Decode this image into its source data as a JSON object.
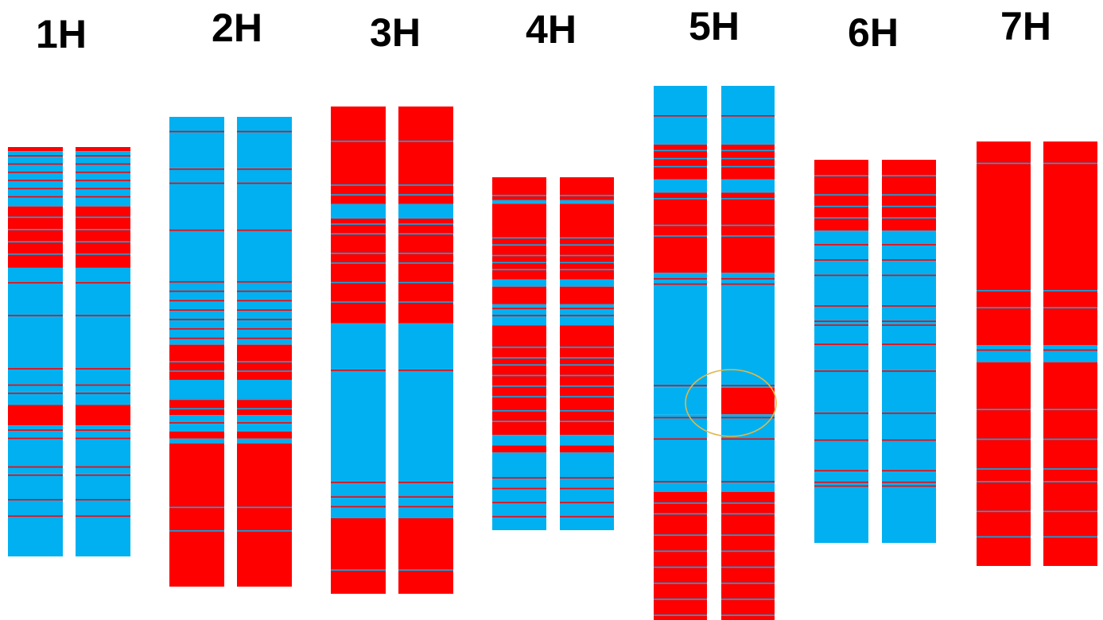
{
  "colors": {
    "blue": "#00B0F0",
    "red": "#FF0000",
    "highlight": "#E0B84A"
  },
  "chromosomes": [
    {
      "label": "1H",
      "blocks": [
        {
          "c": "red",
          "s": 0,
          "e": 0.01
        },
        {
          "c": "blue",
          "s": 0.01,
          "e": 0.145
        },
        {
          "c": "red",
          "s": 0.145,
          "e": 0.295
        },
        {
          "c": "blue",
          "s": 0.295,
          "e": 0.63
        },
        {
          "c": "red",
          "s": 0.63,
          "e": 0.68
        },
        {
          "c": "blue",
          "s": 0.68,
          "e": 1
        }
      ],
      "lines": [
        0.02,
        0.04,
        0.06,
        0.08,
        0.1,
        0.12,
        0.17,
        0.2,
        0.23,
        0.26,
        0.33,
        0.41,
        0.54,
        0.58,
        0.6,
        0.69,
        0.71,
        0.78,
        0.8,
        0.86,
        0.9
      ]
    },
    {
      "label": "2H",
      "blocks": [
        {
          "c": "blue",
          "s": 0,
          "e": 0.485
        },
        {
          "c": "red",
          "s": 0.485,
          "e": 0.56
        },
        {
          "c": "blue",
          "s": 0.56,
          "e": 0.6
        },
        {
          "c": "red",
          "s": 0.6,
          "e": 0.635
        },
        {
          "c": "blue",
          "s": 0.635,
          "e": 0.67
        },
        {
          "c": "red",
          "s": 0.67,
          "e": 0.685
        },
        {
          "c": "blue",
          "s": 0.685,
          "e": 0.695
        },
        {
          "c": "red",
          "s": 0.695,
          "e": 1
        }
      ],
      "lines": [
        0.03,
        0.11,
        0.14,
        0.24,
        0.35,
        0.37,
        0.39,
        0.41,
        0.43,
        0.45,
        0.47,
        0.52,
        0.54,
        0.6,
        0.62,
        0.65,
        0.83,
        0.88
      ]
    },
    {
      "label": "3H",
      "blocks": [
        {
          "c": "red",
          "s": 0,
          "e": 0.2
        },
        {
          "c": "blue",
          "s": 0.2,
          "e": 0.23
        },
        {
          "c": "red",
          "s": 0.23,
          "e": 0.445
        },
        {
          "c": "blue",
          "s": 0.445,
          "e": 0.845
        },
        {
          "c": "red",
          "s": 0.845,
          "e": 1
        }
      ],
      "lines": [
        0.07,
        0.16,
        0.18,
        0.24,
        0.26,
        0.3,
        0.32,
        0.36,
        0.4,
        0.54,
        0.77,
        0.8,
        0.82,
        0.95
      ]
    },
    {
      "label": "4H",
      "blocks": [
        {
          "c": "red",
          "s": 0,
          "e": 0.065
        },
        {
          "c": "blue",
          "s": 0.065,
          "e": 0.075
        },
        {
          "c": "red",
          "s": 0.075,
          "e": 0.29
        },
        {
          "c": "blue",
          "s": 0.29,
          "e": 0.31
        },
        {
          "c": "red",
          "s": 0.31,
          "e": 0.36
        },
        {
          "c": "blue",
          "s": 0.36,
          "e": 0.42
        },
        {
          "c": "red",
          "s": 0.42,
          "e": 0.73
        },
        {
          "c": "blue",
          "s": 0.73,
          "e": 0.76
        },
        {
          "c": "red",
          "s": 0.76,
          "e": 0.78
        },
        {
          "c": "blue",
          "s": 0.78,
          "e": 1
        }
      ],
      "lines": [
        0.05,
        0.17,
        0.19,
        0.22,
        0.24,
        0.26,
        0.37,
        0.39,
        0.48,
        0.51,
        0.53,
        0.56,
        0.59,
        0.62,
        0.66,
        0.69,
        0.85,
        0.88,
        0.92,
        0.96
      ]
    },
    {
      "label": "5H",
      "blocks": [
        {
          "c": "blue",
          "s": 0,
          "e": 0.11
        },
        {
          "c": "red",
          "s": 0.11,
          "e": 0.175
        },
        {
          "c": "blue",
          "s": 0.175,
          "e": 0.2
        },
        {
          "c": "red",
          "s": 0.2,
          "e": 0.35
        },
        {
          "c": "blue",
          "s": 0.35,
          "e": 0.565
        },
        {
          "c": "blue",
          "s": 0.565,
          "e": 0.615,
          "only": 0
        },
        {
          "c": "red",
          "s": 0.565,
          "e": 0.615,
          "only": 1
        },
        {
          "c": "blue",
          "s": 0.615,
          "e": 0.76
        },
        {
          "c": "red",
          "s": 0.76,
          "e": 1
        }
      ],
      "lines": [
        0.055,
        0.12,
        0.135,
        0.15,
        0.21,
        0.26,
        0.28,
        0.36,
        0.37,
        0.56,
        0.62,
        0.66,
        0.74,
        0.78,
        0.8,
        0.84,
        0.87,
        0.9,
        0.93,
        0.96,
        0.99
      ]
    },
    {
      "label": "6H",
      "blocks": [
        {
          "c": "red",
          "s": 0,
          "e": 0.185
        },
        {
          "c": "blue",
          "s": 0.185,
          "e": 1
        }
      ],
      "lines": [
        0.04,
        0.09,
        0.12,
        0.15,
        0.22,
        0.26,
        0.3,
        0.38,
        0.42,
        0.43,
        0.48,
        0.55,
        0.66,
        0.73,
        0.81,
        0.84,
        0.85
      ]
    },
    {
      "label": "7H",
      "blocks": [
        {
          "c": "red",
          "s": 0,
          "e": 0.48
        },
        {
          "c": "blue",
          "s": 0.48,
          "e": 0.52
        },
        {
          "c": "red",
          "s": 0.52,
          "e": 1
        }
      ],
      "lines": [
        0.05,
        0.35,
        0.39,
        0.49,
        0.63,
        0.7,
        0.77,
        0.8,
        0.87,
        0.93
      ]
    }
  ]
}
